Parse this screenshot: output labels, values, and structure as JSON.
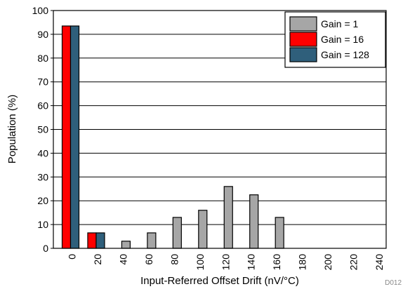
{
  "chart_data": {
    "type": "bar",
    "xlabel": "Input-Referred Offset Drift (nV/°C)",
    "ylabel": "Population (%)",
    "ylim": [
      0,
      100
    ],
    "yticks": [
      "0",
      "10",
      "20",
      "30",
      "40",
      "50",
      "60",
      "70",
      "80",
      "90",
      "100"
    ],
    "categories": [
      "0",
      "20",
      "40",
      "60",
      "80",
      "100",
      "120",
      "140",
      "160",
      "180",
      "200",
      "220",
      "240"
    ],
    "series": [
      {
        "name": "Gain = 1",
        "color": "#a6a6a6",
        "values": [
          0,
          0,
          3,
          6.5,
          13,
          16,
          26,
          22.5,
          13,
          0,
          0,
          0,
          0
        ]
      },
      {
        "name": "Gain = 16",
        "color": "#ff0000",
        "values": [
          93.5,
          6.5,
          0,
          0,
          0,
          0,
          0,
          0,
          0,
          0,
          0,
          0,
          0
        ]
      },
      {
        "name": "Gain = 128",
        "color": "#2f5f7b",
        "values": [
          93.5,
          6.5,
          0,
          0,
          0,
          0,
          0,
          0,
          0,
          0,
          0,
          0,
          0
        ]
      }
    ],
    "grid": true,
    "legend_position": "top-right",
    "footnote": "D012"
  }
}
